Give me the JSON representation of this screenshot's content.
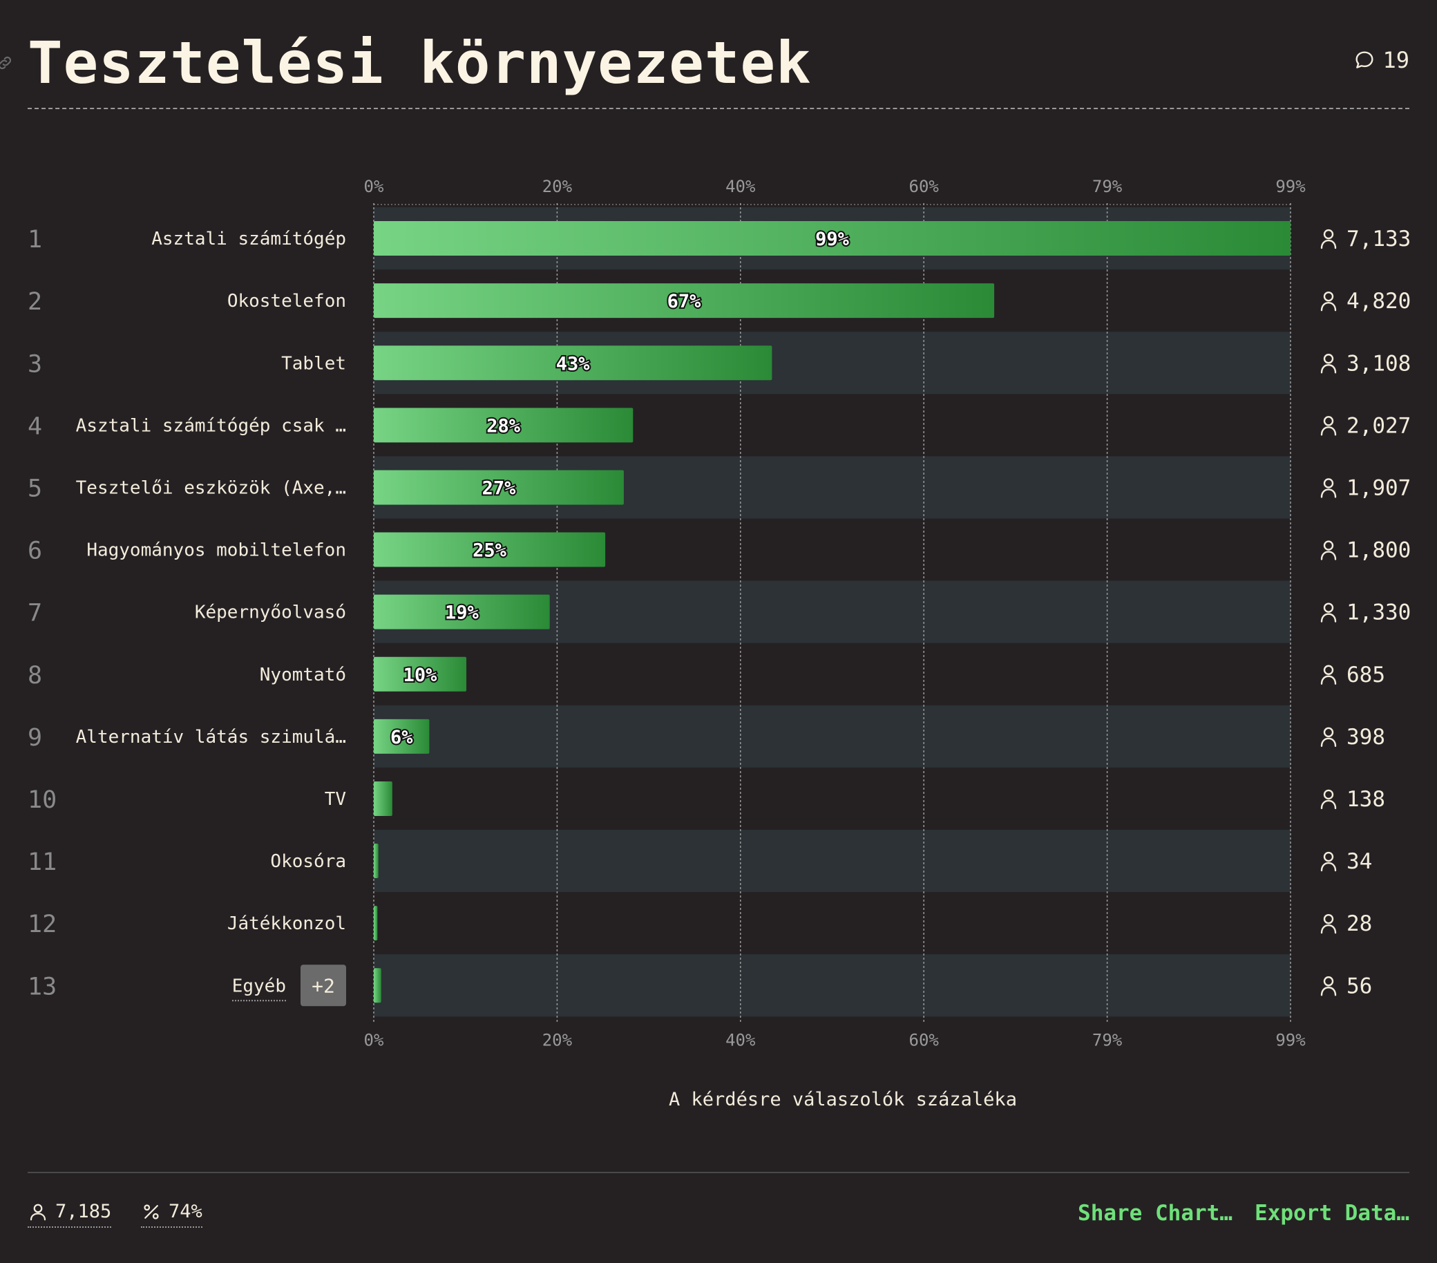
{
  "title": "Tesztelési környezetek",
  "comment_count": "19",
  "chart_data": {
    "type": "bar",
    "orientation": "horizontal",
    "xlabel": "A kérdésre válaszolók százaléka",
    "ticks": [
      "0%",
      "20%",
      "40%",
      "60%",
      "79%",
      "99%"
    ],
    "xlim": [
      0,
      99
    ],
    "rows": [
      {
        "rank": "1",
        "label": "Asztali számítógép",
        "value": 99,
        "value_label": "99%",
        "count": "7,133"
      },
      {
        "rank": "2",
        "label": "Okostelefon",
        "value": 67,
        "value_label": "67%",
        "count": "4,820"
      },
      {
        "rank": "3",
        "label": "Tablet",
        "value": 43,
        "value_label": "43%",
        "count": "3,108"
      },
      {
        "rank": "4",
        "label": "Asztali számítógép csak …",
        "value": 28,
        "value_label": "28%",
        "count": "2,027"
      },
      {
        "rank": "5",
        "label": "Tesztelői eszközök (Axe,…",
        "value": 27,
        "value_label": "27%",
        "count": "1,907"
      },
      {
        "rank": "6",
        "label": "Hagyományos mobiltelefon",
        "value": 25,
        "value_label": "25%",
        "count": "1,800"
      },
      {
        "rank": "7",
        "label": "Képernyőolvasó",
        "value": 19,
        "value_label": "19%",
        "count": "1,330"
      },
      {
        "rank": "8",
        "label": "Nyomtató",
        "value": 10,
        "value_label": "10%",
        "count": "685"
      },
      {
        "rank": "9",
        "label": "Alternatív látás szimulá…",
        "value": 6,
        "value_label": "6%",
        "count": "398"
      },
      {
        "rank": "10",
        "label": "TV",
        "value": 2,
        "value_label": "",
        "count": "138"
      },
      {
        "rank": "11",
        "label": "Okosóra",
        "value": 0.5,
        "value_label": "",
        "count": "34"
      },
      {
        "rank": "12",
        "label": "Játékkonzol",
        "value": 0.4,
        "value_label": "",
        "count": "28"
      },
      {
        "rank": "13",
        "label": "Egyéb",
        "value": 0.8,
        "value_label": "",
        "count": "56",
        "badge": "+2"
      }
    ],
    "grid": true,
    "colors": {
      "bar_start": "#76d484",
      "bar_end": "#2a8a36",
      "row_band": "#2c3236",
      "grid": "#9a9a9a"
    }
  },
  "footer": {
    "respondents": "7,185",
    "percent": "74%",
    "share_label": "Share Chart…",
    "export_label": "Export Data…"
  }
}
